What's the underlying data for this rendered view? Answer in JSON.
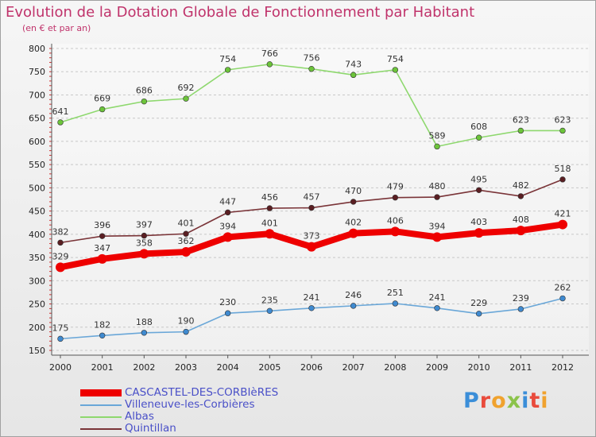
{
  "title": "Evolution de la Dotation Globale de Fonctionnement par Habitant",
  "subtitle": "(en € et par an)",
  "brand": "Proxiti",
  "colors": {
    "title": "#c0336b",
    "legend_text": "#4a50c8"
  },
  "chart_data": {
    "type": "line",
    "title": "Evolution de la Dotation Globale de Fonctionnement par Habitant",
    "ylabel": "(en € et par an)",
    "xlabel": "",
    "x": [
      "2000",
      "2001",
      "2002",
      "2003",
      "2004",
      "2005",
      "2006",
      "2007",
      "2008",
      "2009",
      "2010",
      "2011",
      "2012"
    ],
    "ylim": [
      150,
      800
    ],
    "yticks": [
      150,
      200,
      250,
      300,
      350,
      400,
      450,
      500,
      550,
      600,
      650,
      700,
      750,
      800
    ],
    "grid": "horizontal-dashed",
    "legend": "bottom-left",
    "series": [
      {
        "name": "Albas",
        "color": "#8ed86e",
        "marker": "#6cc43a",
        "values": [
          641,
          669,
          686,
          692,
          754,
          766,
          756,
          743,
          754,
          589,
          608,
          623,
          623
        ]
      },
      {
        "name": "Quintillan",
        "color": "#7a3438",
        "marker": "#5a1e22",
        "values": [
          382,
          396,
          397,
          401,
          447,
          456,
          457,
          470,
          479,
          480,
          495,
          482,
          518
        ]
      },
      {
        "name": "CASCASTEL-DES-CORBIèRES",
        "color": "#ee0000",
        "marker": "#ee0000",
        "bold": true,
        "values": [
          329,
          347,
          358,
          362,
          394,
          401,
          373,
          402,
          406,
          394,
          403,
          408,
          421
        ]
      },
      {
        "name": "Villeneuve-les-Corbières",
        "color": "#6aa7d8",
        "marker": "#3f8ad0",
        "values": [
          175,
          182,
          188,
          190,
          230,
          235,
          241,
          246,
          251,
          241,
          229,
          239,
          262
        ]
      }
    ]
  },
  "legend_items": [
    {
      "label": "CASCASTEL-DES-CORBIèRES",
      "color": "#ee0000",
      "bold": true
    },
    {
      "label": "Villeneuve-les-Corbières",
      "color": "#6aa7d8"
    },
    {
      "label": "Albas",
      "color": "#8ed86e"
    },
    {
      "label": "Quintillan",
      "color": "#7a3438"
    }
  ]
}
